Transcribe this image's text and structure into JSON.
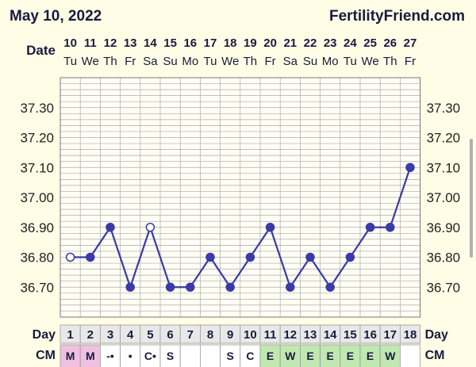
{
  "header": {
    "date": "May 10, 2022",
    "site": "FertilityFriend.com"
  },
  "labels": {
    "date_row": "Date",
    "day_row": "Day",
    "cm_row": "CM"
  },
  "colors": {
    "line": "#3a3aa8",
    "grid": "#aaaaaa",
    "background": "#fffde6",
    "menstruation_cell": "#f0c0e0",
    "egg_white_cell": "#c0e8b0",
    "watery_cell": "#c0e8b0"
  },
  "chart_data": {
    "type": "line",
    "title": "",
    "xlabel": "Day",
    "ylabel": "",
    "ylim": [
      36.6,
      37.4
    ],
    "y_ticks": [
      "37.30",
      "37.20",
      "37.10",
      "37.00",
      "36.90",
      "36.80",
      "36.70"
    ],
    "grid": true,
    "dates": [
      "10",
      "11",
      "12",
      "13",
      "14",
      "15",
      "16",
      "17",
      "18",
      "19",
      "20",
      "21",
      "22",
      "23",
      "24",
      "25",
      "26",
      "27"
    ],
    "weekdays": [
      "Tu",
      "We",
      "Th",
      "Fr",
      "Sa",
      "Su",
      "Mo",
      "Tu",
      "We",
      "Th",
      "Fr",
      "Sa",
      "Su",
      "Mo",
      "Tu",
      "We",
      "Th",
      "Fr"
    ],
    "days": [
      "1",
      "2",
      "3",
      "4",
      "5",
      "6",
      "7",
      "8",
      "9",
      "10",
      "11",
      "12",
      "13",
      "14",
      "15",
      "16",
      "17",
      "18"
    ],
    "cm": [
      "M",
      "M",
      "-•",
      "•",
      "C•",
      "S",
      "",
      "",
      "S",
      "C",
      "E",
      "W",
      "E",
      "E",
      "E",
      "E",
      "W",
      ""
    ],
    "series": [
      {
        "values": [
          36.8,
          36.8,
          36.9,
          36.7,
          36.9,
          36.7,
          36.7,
          36.8,
          36.7,
          36.8,
          36.9,
          36.7,
          36.8,
          36.7,
          36.8,
          36.9,
          36.9,
          37.1
        ],
        "open_points": [
          0,
          4
        ]
      }
    ]
  }
}
